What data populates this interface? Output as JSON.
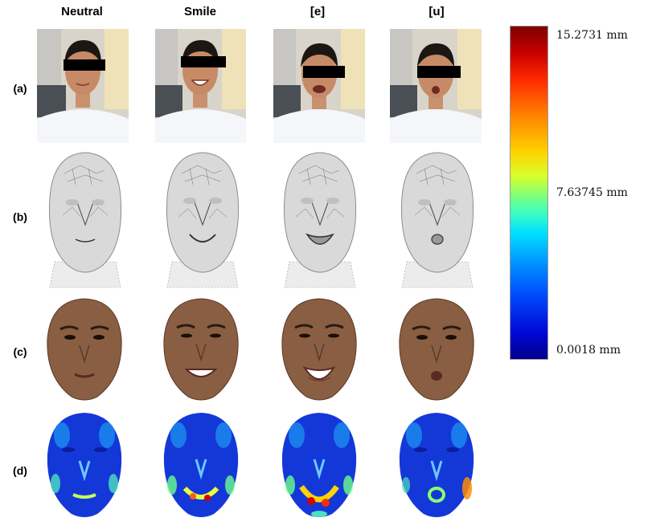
{
  "columns": [
    "Neutral",
    "Smile",
    "[e]",
    "[u]"
  ],
  "rows": [
    "(a)",
    "(b)",
    "(c)",
    "(d)"
  ],
  "colorbar": {
    "max_label": "15.2731 mm",
    "mid_label": "7.63745 mm",
    "min_label": "0.0018 mm",
    "colors": [
      "#7f0000",
      "#ff2a00",
      "#ffd400",
      "#8cff6e",
      "#00e1ff",
      "#0050ff",
      "#00008c"
    ]
  },
  "panels": {
    "photo_occluder_color": "#000000",
    "face_skin_color": "#8a5e43",
    "mesh_color": "#d9d9d9",
    "heatmap_base_color": "#1438d8"
  }
}
